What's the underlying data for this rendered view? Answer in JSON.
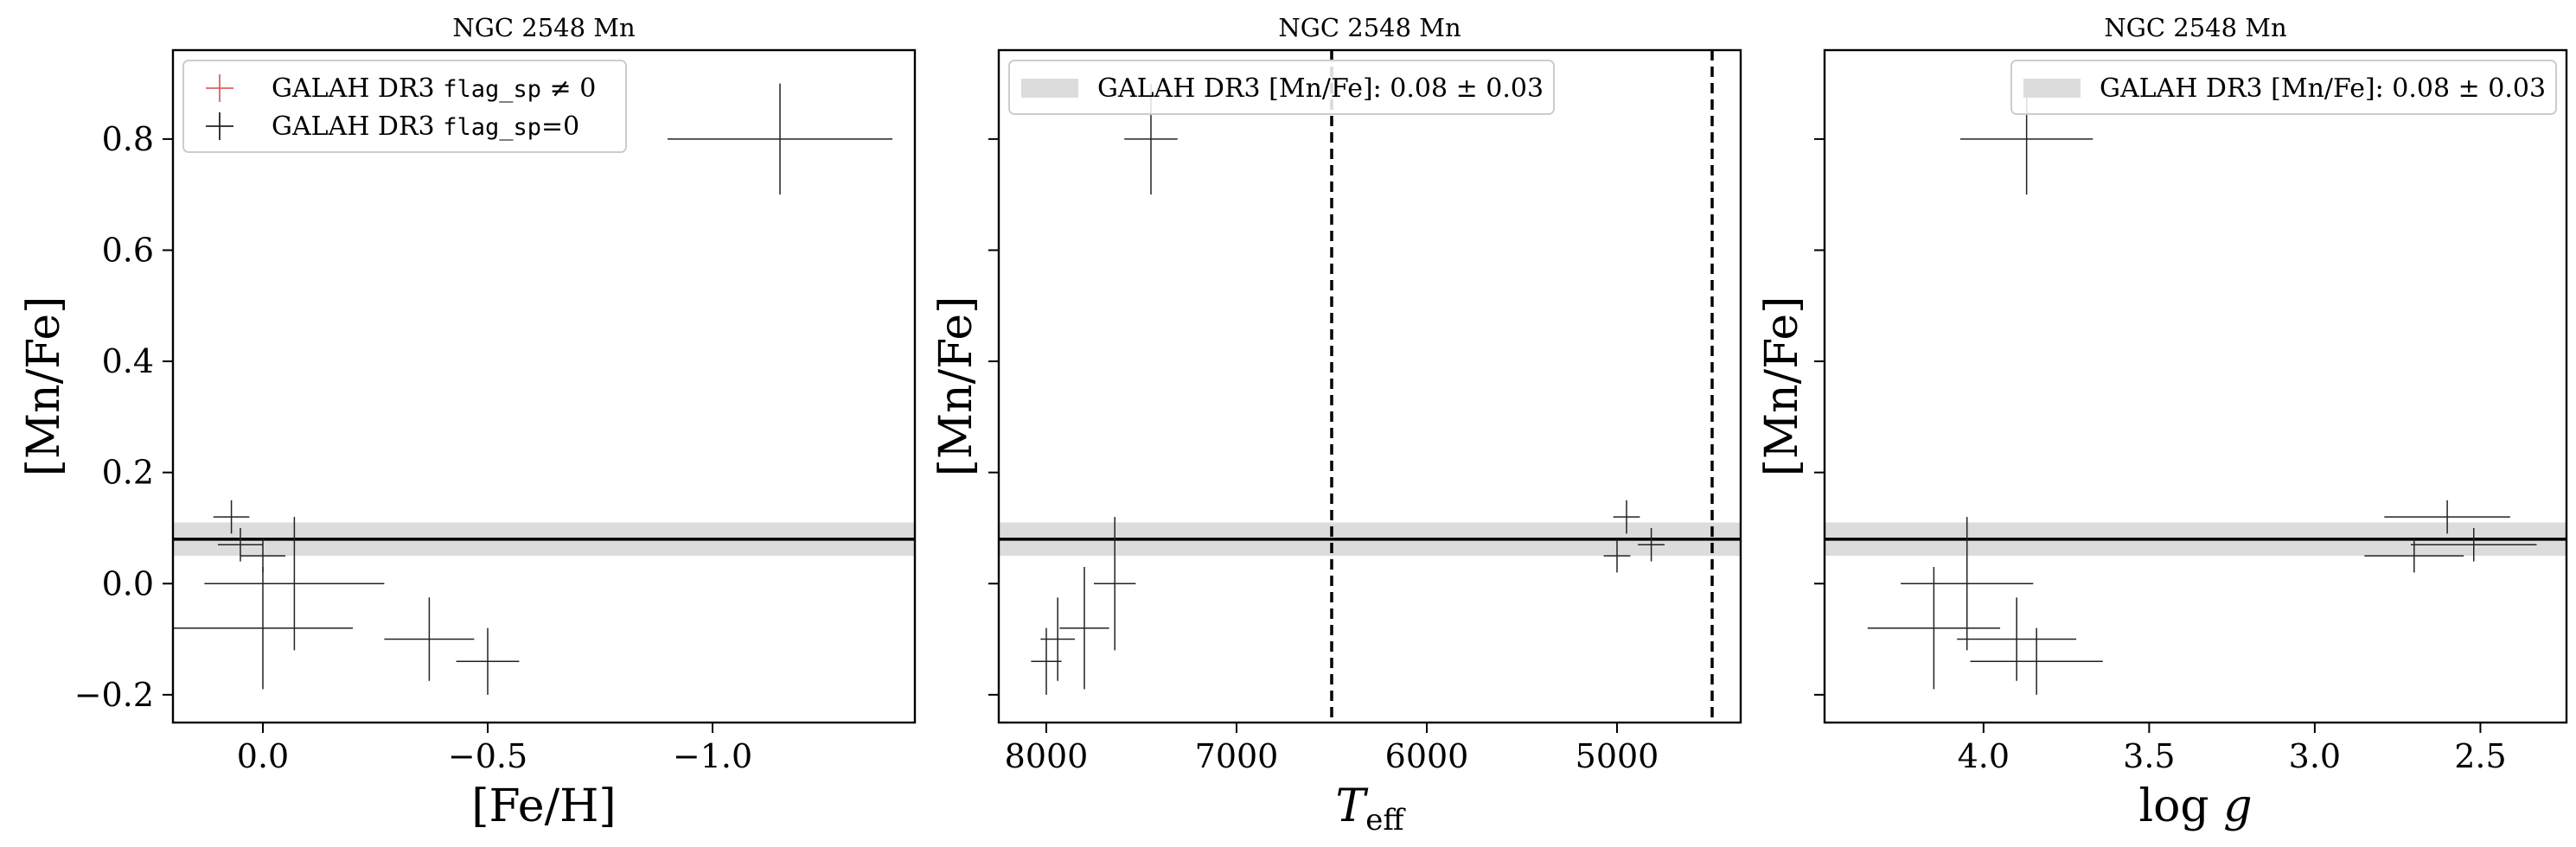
{
  "colors": {
    "point": "#222222",
    "flagged": "#e06060",
    "galah_band": "#dcdcdc",
    "axis": "#000000",
    "legend_border": "#cccccc"
  },
  "chart_data": [
    {
      "type": "scatter",
      "title": "NGC 2548 Mn",
      "xlabel": "[Fe/H]",
      "ylabel": "[Mn/Fe]",
      "xlim": [
        0.2,
        -1.45
      ],
      "ylim": [
        -0.25,
        0.96
      ],
      "xticks": [
        0.0,
        -0.5,
        -1.0
      ],
      "xtick_labels": [
        "0.0",
        "−0.5",
        "−1.0"
      ],
      "yticks": [
        -0.2,
        0.0,
        0.2,
        0.4,
        0.6,
        0.8
      ],
      "ytick_labels": [
        "−0.2",
        "0.0",
        "0.2",
        "0.4",
        "0.6",
        "0.8"
      ],
      "hline": 0.08,
      "band": [
        0.05,
        0.11
      ],
      "legend": {
        "position": "top-left",
        "entries": [
          {
            "prefix": "GALAH DR3 ",
            "code": "flag_sp",
            "suffix": " ≠ 0",
            "marker": "flagged"
          },
          {
            "prefix": "GALAH DR3 ",
            "code": "flag_sp",
            "suffix": "=0",
            "marker": "point"
          }
        ]
      },
      "points": [
        {
          "x": 0.07,
          "y": 0.12,
          "xerr": 0.04,
          "yerr": 0.03
        },
        {
          "x": 0.05,
          "y": 0.07,
          "xerr": 0.05,
          "yerr": 0.03
        },
        {
          "x": 0.0,
          "y": 0.05,
          "xerr": 0.05,
          "yerr": 0.03
        },
        {
          "x": -0.07,
          "y": 0.0,
          "xerr": 0.2,
          "yerr": 0.12
        },
        {
          "x": 0.0,
          "y": -0.08,
          "xerr": 0.2,
          "yerr": 0.11
        },
        {
          "x": -0.37,
          "y": -0.1,
          "xerr": 0.1,
          "yerr": 0.075
        },
        {
          "x": -0.5,
          "y": -0.14,
          "xerr": 0.07,
          "yerr": 0.06
        },
        {
          "x": -1.15,
          "y": 0.8,
          "xerr": 0.25,
          "yerr": 0.1
        }
      ]
    },
    {
      "type": "scatter",
      "title": "NGC 2548 Mn",
      "xlabel": "T_eff",
      "ylabel": "[Mn/Fe]",
      "xlim": [
        8250,
        4350
      ],
      "ylim": [
        -0.25,
        0.96
      ],
      "xticks": [
        8000,
        7000,
        6000,
        5000
      ],
      "xtick_labels": [
        "8000",
        "7000",
        "6000",
        "5000"
      ],
      "yticks": [
        -0.2,
        0.0,
        0.2,
        0.4,
        0.6,
        0.8
      ],
      "ytick_labels": [],
      "hline": 0.08,
      "band": [
        0.05,
        0.11
      ],
      "vlines": [
        6500,
        4500
      ],
      "legend": {
        "position": "top-left",
        "entries": [
          {
            "label": "GALAH DR3 [Mn/Fe]: 0.08 ± 0.03",
            "marker": "band"
          }
        ]
      },
      "points": [
        {
          "x": 7450,
          "y": 0.8,
          "xerr": 140,
          "yerr": 0.1
        },
        {
          "x": 8000,
          "y": -0.14,
          "xerr": 80,
          "yerr": 0.06
        },
        {
          "x": 7940,
          "y": -0.1,
          "xerr": 90,
          "yerr": 0.075
        },
        {
          "x": 7800,
          "y": -0.08,
          "xerr": 130,
          "yerr": 0.11
        },
        {
          "x": 7640,
          "y": 0.0,
          "xerr": 110,
          "yerr": 0.12
        },
        {
          "x": 4950,
          "y": 0.12,
          "xerr": 70,
          "yerr": 0.03
        },
        {
          "x": 5000,
          "y": 0.05,
          "xerr": 70,
          "yerr": 0.03
        },
        {
          "x": 4820,
          "y": 0.07,
          "xerr": 70,
          "yerr": 0.03
        }
      ]
    },
    {
      "type": "scatter",
      "title": "NGC 2548 Mn",
      "xlabel": "log g",
      "ylabel": "[Mn/Fe]",
      "xlim": [
        4.48,
        2.24
      ],
      "ylim": [
        -0.25,
        0.96
      ],
      "xticks": [
        4.0,
        3.5,
        3.0,
        2.5
      ],
      "xtick_labels": [
        "4.0",
        "3.5",
        "3.0",
        "2.5"
      ],
      "yticks": [
        -0.2,
        0.0,
        0.2,
        0.4,
        0.6,
        0.8
      ],
      "ytick_labels": [],
      "hline": 0.08,
      "band": [
        0.05,
        0.11
      ],
      "legend": {
        "position": "top-right",
        "entries": [
          {
            "label": "GALAH DR3 [Mn/Fe]: 0.08 ± 0.03",
            "marker": "band"
          }
        ]
      },
      "points": [
        {
          "x": 3.87,
          "y": 0.8,
          "xerr": 0.2,
          "yerr": 0.1
        },
        {
          "x": 4.15,
          "y": -0.08,
          "xerr": 0.2,
          "yerr": 0.11
        },
        {
          "x": 4.05,
          "y": 0.0,
          "xerr": 0.2,
          "yerr": 0.12
        },
        {
          "x": 3.9,
          "y": -0.1,
          "xerr": 0.18,
          "yerr": 0.075
        },
        {
          "x": 3.84,
          "y": -0.14,
          "xerr": 0.2,
          "yerr": 0.06
        },
        {
          "x": 2.6,
          "y": 0.12,
          "xerr": 0.19,
          "yerr": 0.03
        },
        {
          "x": 2.7,
          "y": 0.05,
          "xerr": 0.15,
          "yerr": 0.03
        },
        {
          "x": 2.52,
          "y": 0.07,
          "xerr": 0.19,
          "yerr": 0.03
        }
      ]
    }
  ]
}
